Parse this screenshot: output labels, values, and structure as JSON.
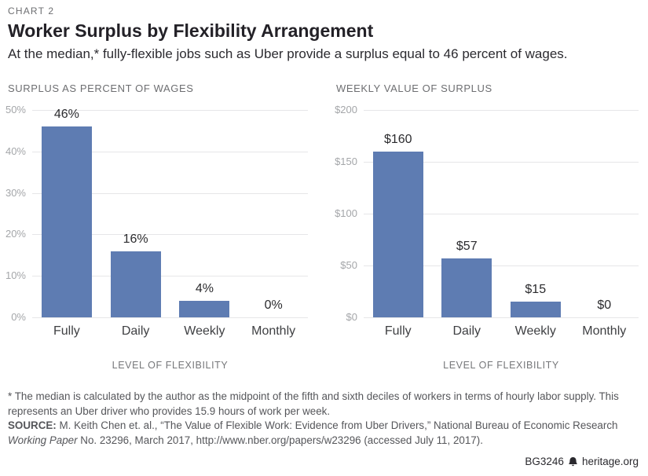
{
  "header": {
    "eyebrow": "CHART 2",
    "title": "Worker Surplus by Flexibility Arrangement",
    "subtitle": "At the median,* fully-flexible jobs such as Uber provide a surplus equal to 46 percent of wages."
  },
  "colors": {
    "bar": "#5e7cb2",
    "grid": "#e6e6e8",
    "tick_text": "#a4a6a9",
    "section_title_text": "#6d6e71",
    "category_text": "#3f4043",
    "value_text": "#2b2b2e",
    "footnote_text": "#55565a"
  },
  "chart_data": [
    {
      "type": "bar",
      "title": "SURPLUS AS PERCENT OF WAGES",
      "categories": [
        "Fully",
        "Daily",
        "Weekly",
        "Monthly"
      ],
      "values": [
        46,
        16,
        4,
        0
      ],
      "data_labels": [
        "46%",
        "16%",
        "4%",
        "0%"
      ],
      "xlabel": "LEVEL OF FLEXIBILITY",
      "ylabel_ticks": [
        "50%",
        "40%",
        "30%",
        "20%",
        "10%",
        "0%"
      ],
      "ylim": [
        0,
        50
      ],
      "grid": true,
      "legend": "none"
    },
    {
      "type": "bar",
      "title": "WEEKLY VALUE OF SURPLUS",
      "categories": [
        "Fully",
        "Daily",
        "Weekly",
        "Monthly"
      ],
      "values": [
        160,
        57,
        15,
        0
      ],
      "data_labels": [
        "$160",
        "$57",
        "$15",
        "$0"
      ],
      "xlabel": "LEVEL OF FLEXIBILITY",
      "ylabel_ticks": [
        "$200",
        "$150",
        "$100",
        "$50",
        "$0"
      ],
      "ylim": [
        0,
        200
      ],
      "grid": true,
      "legend": "none"
    }
  ],
  "footnotes": {
    "median_note": "* The median is calculated by the author as the midpoint of the fifth and sixth deciles of workers in terms of hourly labor supply. This represents an Uber driver who provides 15.9 hours of work per week.",
    "source_label": "SOURCE:",
    "source_text_1": " M. Keith Chen et. al., “The Value of Flexible Work: Evidence from Uber Drivers,” National Bureau of Economic Research ",
    "source_text_italic": "Working Paper",
    "source_text_2": " No. 23296, March 2017, http://www.nber.org/papers/w23296 (accessed July 11, 2017)."
  },
  "footer": {
    "report_id": "BG3246",
    "site": "heritage.org",
    "logo": "heritage-bell-icon"
  }
}
